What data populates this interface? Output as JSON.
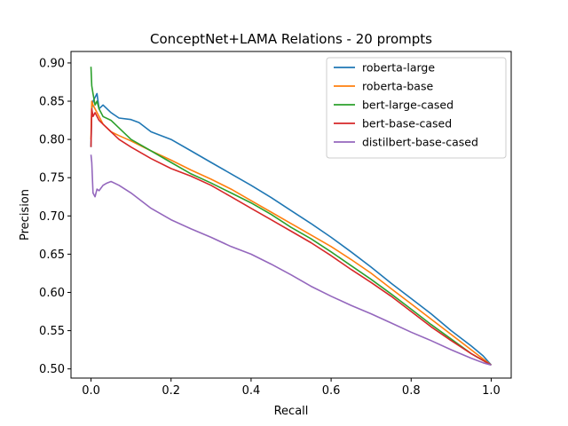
{
  "chart_data": {
    "type": "line",
    "title": "ConceptNet+LAMA Relations - 20 prompts",
    "xlabel": "Recall",
    "ylabel": "Precision",
    "xlim": [
      -0.05,
      1.05
    ],
    "ylim": [
      0.488,
      0.915
    ],
    "xticks": [
      0.0,
      0.2,
      0.4,
      0.6,
      0.8,
      1.0
    ],
    "xtick_labels": [
      "0.0",
      "0.2",
      "0.4",
      "0.6",
      "0.8",
      "1.0"
    ],
    "yticks": [
      0.5,
      0.55,
      0.6,
      0.65,
      0.7,
      0.75,
      0.8,
      0.85,
      0.9
    ],
    "ytick_labels": [
      "0.50",
      "0.55",
      "0.60",
      "0.65",
      "0.70",
      "0.75",
      "0.80",
      "0.85",
      "0.90"
    ],
    "grid": false,
    "legend_position": "top-right",
    "series": [
      {
        "name": "roberta-large",
        "color": "#1f77b4",
        "points": [
          [
            0.0,
            0.79
          ],
          [
            0.002,
            0.84
          ],
          [
            0.005,
            0.85
          ],
          [
            0.01,
            0.855
          ],
          [
            0.015,
            0.86
          ],
          [
            0.02,
            0.84
          ],
          [
            0.03,
            0.845
          ],
          [
            0.05,
            0.835
          ],
          [
            0.07,
            0.828
          ],
          [
            0.1,
            0.826
          ],
          [
            0.12,
            0.822
          ],
          [
            0.15,
            0.81
          ],
          [
            0.2,
            0.8
          ],
          [
            0.25,
            0.785
          ],
          [
            0.3,
            0.77
          ],
          [
            0.35,
            0.755
          ],
          [
            0.4,
            0.74
          ],
          [
            0.45,
            0.724
          ],
          [
            0.5,
            0.707
          ],
          [
            0.55,
            0.69
          ],
          [
            0.6,
            0.672
          ],
          [
            0.65,
            0.653
          ],
          [
            0.7,
            0.633
          ],
          [
            0.75,
            0.612
          ],
          [
            0.8,
            0.592
          ],
          [
            0.85,
            0.572
          ],
          [
            0.9,
            0.55
          ],
          [
            0.95,
            0.53
          ],
          [
            0.98,
            0.517
          ],
          [
            1.0,
            0.505
          ]
        ]
      },
      {
        "name": "roberta-base",
        "color": "#ff7f0e",
        "points": [
          [
            0.0,
            0.8
          ],
          [
            0.002,
            0.85
          ],
          [
            0.005,
            0.845
          ],
          [
            0.01,
            0.84
          ],
          [
            0.02,
            0.83
          ],
          [
            0.03,
            0.82
          ],
          [
            0.05,
            0.81
          ],
          [
            0.07,
            0.805
          ],
          [
            0.1,
            0.798
          ],
          [
            0.15,
            0.785
          ],
          [
            0.2,
            0.773
          ],
          [
            0.25,
            0.76
          ],
          [
            0.3,
            0.748
          ],
          [
            0.35,
            0.735
          ],
          [
            0.4,
            0.72
          ],
          [
            0.45,
            0.705
          ],
          [
            0.5,
            0.69
          ],
          [
            0.55,
            0.675
          ],
          [
            0.6,
            0.66
          ],
          [
            0.65,
            0.643
          ],
          [
            0.7,
            0.625
          ],
          [
            0.75,
            0.605
          ],
          [
            0.8,
            0.585
          ],
          [
            0.85,
            0.565
          ],
          [
            0.9,
            0.545
          ],
          [
            0.95,
            0.525
          ],
          [
            0.98,
            0.513
          ],
          [
            1.0,
            0.505
          ]
        ]
      },
      {
        "name": "bert-large-cased",
        "color": "#2ca02c",
        "points": [
          [
            0.0,
            0.895
          ],
          [
            0.002,
            0.87
          ],
          [
            0.005,
            0.86
          ],
          [
            0.01,
            0.845
          ],
          [
            0.015,
            0.85
          ],
          [
            0.02,
            0.84
          ],
          [
            0.03,
            0.83
          ],
          [
            0.05,
            0.825
          ],
          [
            0.07,
            0.815
          ],
          [
            0.1,
            0.8
          ],
          [
            0.15,
            0.785
          ],
          [
            0.2,
            0.77
          ],
          [
            0.25,
            0.755
          ],
          [
            0.3,
            0.743
          ],
          [
            0.35,
            0.73
          ],
          [
            0.4,
            0.717
          ],
          [
            0.45,
            0.702
          ],
          [
            0.5,
            0.685
          ],
          [
            0.55,
            0.67
          ],
          [
            0.6,
            0.653
          ],
          [
            0.65,
            0.635
          ],
          [
            0.7,
            0.617
          ],
          [
            0.75,
            0.598
          ],
          [
            0.8,
            0.578
          ],
          [
            0.85,
            0.558
          ],
          [
            0.9,
            0.539
          ],
          [
            0.95,
            0.52
          ],
          [
            0.98,
            0.511
          ],
          [
            1.0,
            0.505
          ]
        ]
      },
      {
        "name": "bert-base-cased",
        "color": "#d62728",
        "points": [
          [
            0.0,
            0.79
          ],
          [
            0.002,
            0.84
          ],
          [
            0.005,
            0.83
          ],
          [
            0.01,
            0.835
          ],
          [
            0.02,
            0.825
          ],
          [
            0.03,
            0.82
          ],
          [
            0.05,
            0.81
          ],
          [
            0.07,
            0.8
          ],
          [
            0.1,
            0.79
          ],
          [
            0.15,
            0.775
          ],
          [
            0.2,
            0.762
          ],
          [
            0.25,
            0.752
          ],
          [
            0.3,
            0.74
          ],
          [
            0.35,
            0.725
          ],
          [
            0.4,
            0.71
          ],
          [
            0.45,
            0.695
          ],
          [
            0.5,
            0.68
          ],
          [
            0.55,
            0.665
          ],
          [
            0.6,
            0.648
          ],
          [
            0.65,
            0.63
          ],
          [
            0.7,
            0.613
          ],
          [
            0.75,
            0.595
          ],
          [
            0.8,
            0.575
          ],
          [
            0.85,
            0.555
          ],
          [
            0.9,
            0.537
          ],
          [
            0.95,
            0.52
          ],
          [
            0.98,
            0.511
          ],
          [
            1.0,
            0.505
          ]
        ]
      },
      {
        "name": "distilbert-base-cased",
        "color": "#9467bd",
        "points": [
          [
            0.0,
            0.78
          ],
          [
            0.002,
            0.77
          ],
          [
            0.005,
            0.73
          ],
          [
            0.01,
            0.725
          ],
          [
            0.015,
            0.735
          ],
          [
            0.02,
            0.733
          ],
          [
            0.03,
            0.74
          ],
          [
            0.04,
            0.743
          ],
          [
            0.05,
            0.745
          ],
          [
            0.07,
            0.74
          ],
          [
            0.1,
            0.73
          ],
          [
            0.15,
            0.71
          ],
          [
            0.2,
            0.695
          ],
          [
            0.25,
            0.683
          ],
          [
            0.3,
            0.672
          ],
          [
            0.35,
            0.66
          ],
          [
            0.4,
            0.65
          ],
          [
            0.45,
            0.637
          ],
          [
            0.5,
            0.623
          ],
          [
            0.55,
            0.608
          ],
          [
            0.6,
            0.595
          ],
          [
            0.65,
            0.583
          ],
          [
            0.7,
            0.572
          ],
          [
            0.75,
            0.56
          ],
          [
            0.8,
            0.548
          ],
          [
            0.85,
            0.537
          ],
          [
            0.9,
            0.525
          ],
          [
            0.95,
            0.514
          ],
          [
            0.98,
            0.508
          ],
          [
            1.0,
            0.505
          ]
        ]
      }
    ]
  }
}
